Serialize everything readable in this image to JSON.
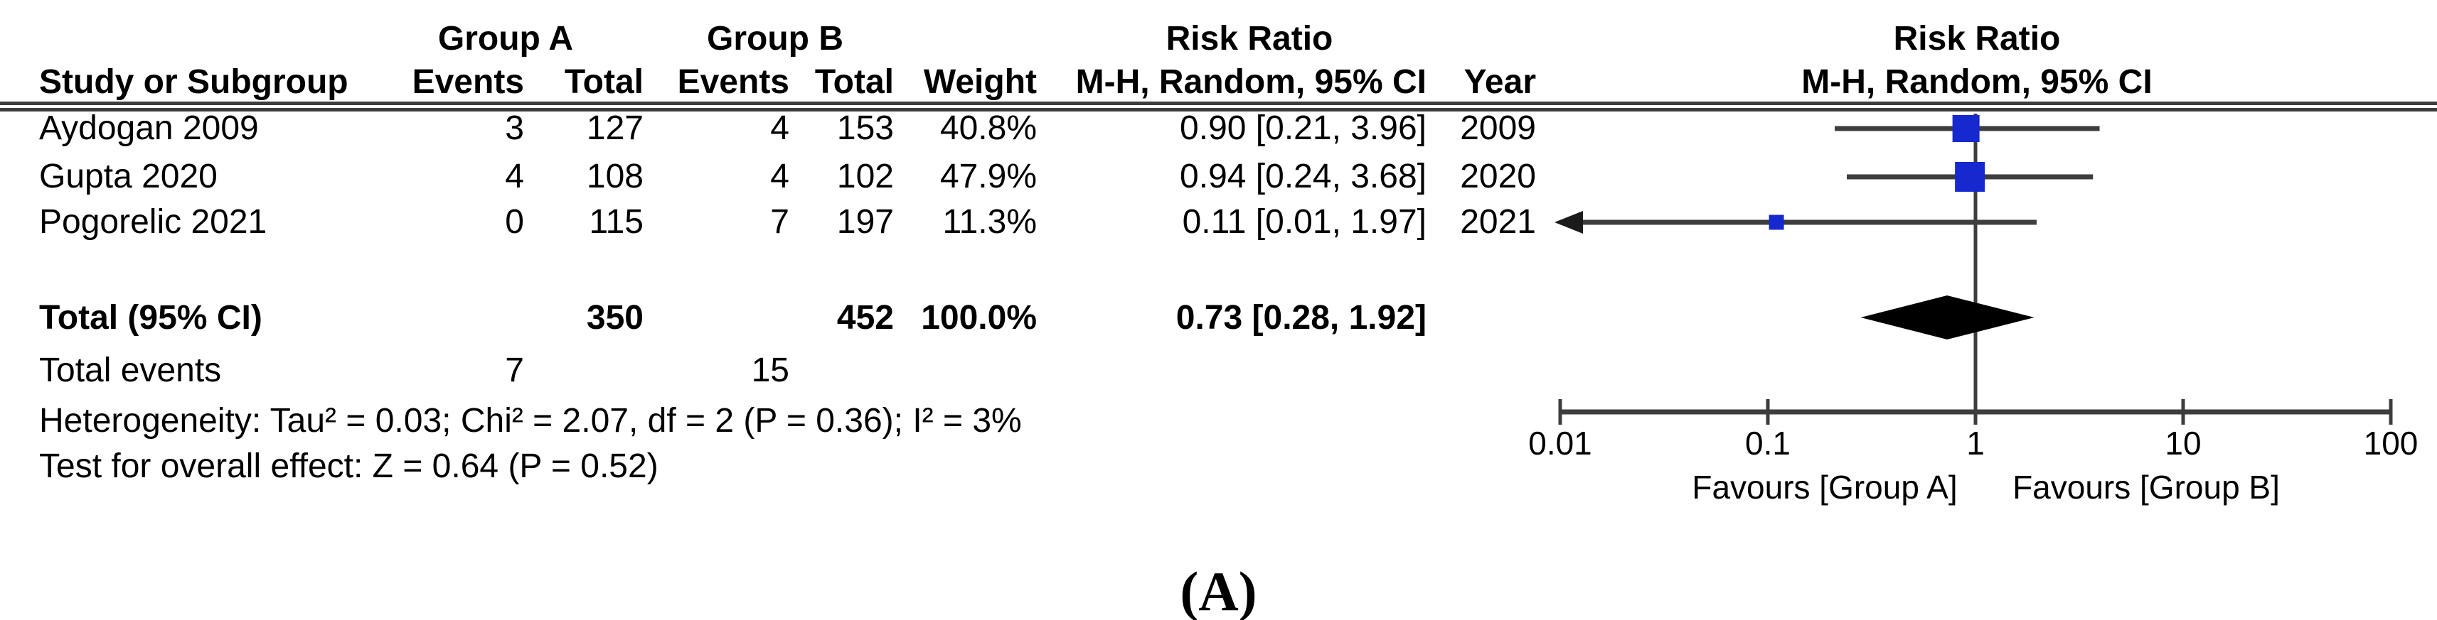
{
  "figure": {
    "caption": "(A)"
  },
  "header": {
    "group_a": "Group A",
    "group_b": "Group B",
    "risk_ratio_table": "Risk Ratio",
    "risk_ratio_plot": "Risk Ratio",
    "study": "Study or Subgroup",
    "events_a": "Events",
    "total_a": "Total",
    "events_b": "Events",
    "total_b": "Total",
    "weight": "Weight",
    "mh_ci_table": "M-H, Random, 95% CI",
    "year": "Year",
    "mh_ci_plot": "M-H, Random, 95% CI"
  },
  "rows": [
    {
      "study": "Aydogan 2009",
      "events_a": "3",
      "total_a": "127",
      "events_b": "4",
      "total_b": "153",
      "weight": "40.8%",
      "rr_ci": "0.90 [0.21, 3.96]",
      "year": "2009"
    },
    {
      "study": "Gupta 2020",
      "events_a": "4",
      "total_a": "108",
      "events_b": "4",
      "total_b": "102",
      "weight": "47.9%",
      "rr_ci": "0.94 [0.24, 3.68]",
      "year": "2020"
    },
    {
      "study": "Pogorelic 2021",
      "events_a": "0",
      "total_a": "115",
      "events_b": "7",
      "total_b": "197",
      "weight": "11.3%",
      "rr_ci": "0.11 [0.01, 1.97]",
      "year": "2021"
    }
  ],
  "summary": {
    "total_label": "Total (95% CI)",
    "total_a": "350",
    "total_b": "452",
    "weight": "100.0%",
    "rr_ci": "0.73 [0.28, 1.92]",
    "total_events_label": "Total events",
    "events_a": "7",
    "events_b": "15",
    "heterogeneity": "Heterogeneity: Tau² = 0.03; Chi² = 2.07, df = 2 (P = 0.36); I² = 3%",
    "overall_effect": "Test for overall effect: Z = 0.64 (P = 0.52)"
  },
  "plot": {
    "favours_left": "Favours [Group A]",
    "favours_right": "Favours [Group B]",
    "marker_color": "#1629cf",
    "line_color": "#3d3d3d",
    "diamond_color": "#000000"
  },
  "chart_data": {
    "type": "forest",
    "effect_measure": "Risk Ratio",
    "method": "M-H, Random, 95% CI",
    "x_scale": "log10",
    "x_ticks": [
      0.01,
      0.1,
      1,
      10,
      100
    ],
    "x_tick_labels": [
      "0.01",
      "0.1",
      "1",
      "10",
      "100"
    ],
    "null_line": 1,
    "studies": [
      {
        "name": "Aydogan 2009",
        "events_a": 3,
        "total_a": 127,
        "events_b": 4,
        "total_b": 153,
        "weight_pct": 40.8,
        "rr": 0.9,
        "ci_low": 0.21,
        "ci_high": 3.96,
        "year": 2009,
        "ci_low_arrow": false
      },
      {
        "name": "Gupta 2020",
        "events_a": 4,
        "total_a": 108,
        "events_b": 4,
        "total_b": 102,
        "weight_pct": 47.9,
        "rr": 0.94,
        "ci_low": 0.24,
        "ci_high": 3.68,
        "year": 2020,
        "ci_low_arrow": false
      },
      {
        "name": "Pogorelic 2021",
        "events_a": 0,
        "total_a": 115,
        "events_b": 7,
        "total_b": 197,
        "weight_pct": 11.3,
        "rr": 0.11,
        "ci_low": 0.01,
        "ci_high": 1.97,
        "year": 2021,
        "ci_low_arrow": true
      }
    ],
    "total": {
      "rr": 0.73,
      "ci_low": 0.28,
      "ci_high": 1.92,
      "total_a": 350,
      "total_b": 452,
      "weight_pct": 100.0,
      "events_a": 7,
      "events_b": 15
    },
    "heterogeneity": {
      "tau2": 0.03,
      "chi2": 2.07,
      "df": 2,
      "p": 0.36,
      "i2_pct": 3
    },
    "overall_effect": {
      "z": 0.64,
      "p": 0.52
    }
  }
}
